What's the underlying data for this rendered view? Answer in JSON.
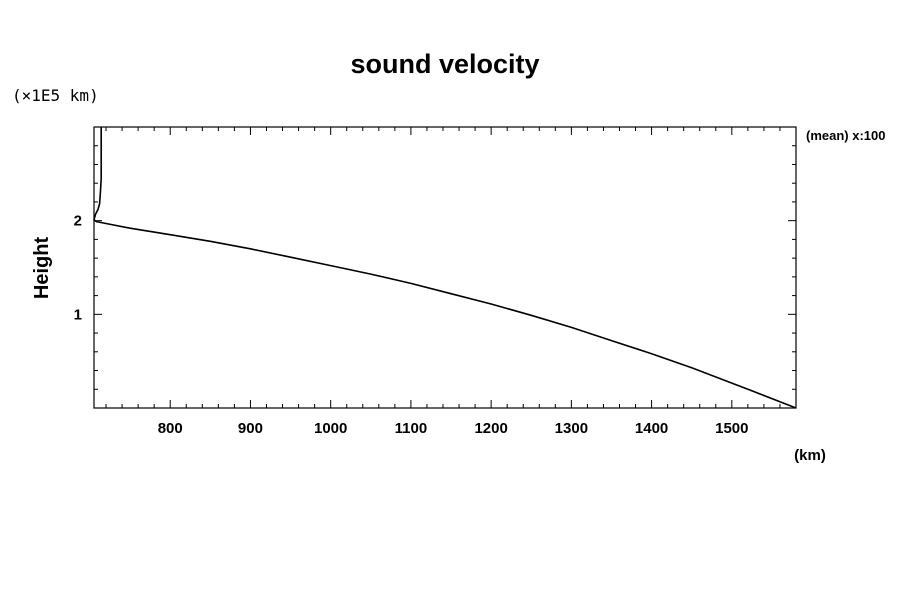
{
  "chart_data": {
    "type": "line",
    "title": "sound velocity",
    "xlabel": "(km)",
    "ylabel": "Height",
    "y_scale_note": "(×1E5 km)",
    "annotation": "(mean) x:100",
    "xlim": [
      705,
      1580
    ],
    "ylim": [
      0,
      3.0
    ],
    "x_ticks": [
      800,
      900,
      1000,
      1100,
      1200,
      1300,
      1400,
      1500
    ],
    "x_tick_labels": [
      "800",
      "900",
      "1000",
      "1100",
      "1200",
      "1300",
      "1400",
      "1500"
    ],
    "y_ticks": [
      1,
      2
    ],
    "y_tick_labels": [
      "1",
      "2"
    ],
    "grid": false,
    "series": [
      {
        "name": "sound velocity",
        "x": [
          1580,
          1520,
          1450,
          1400,
          1350,
          1300,
          1250,
          1200,
          1150,
          1100,
          1050,
          1000,
          950,
          900,
          850,
          800,
          750,
          720,
          708,
          705,
          707,
          710,
          712,
          713,
          714,
          714,
          714
        ],
        "y": [
          0.0,
          0.2,
          0.43,
          0.58,
          0.72,
          0.86,
          0.99,
          1.11,
          1.22,
          1.33,
          1.43,
          1.52,
          1.61,
          1.7,
          1.78,
          1.85,
          1.92,
          1.97,
          1.99,
          2.01,
          2.07,
          2.12,
          2.18,
          2.3,
          2.45,
          2.7,
          3.0
        ]
      }
    ]
  }
}
